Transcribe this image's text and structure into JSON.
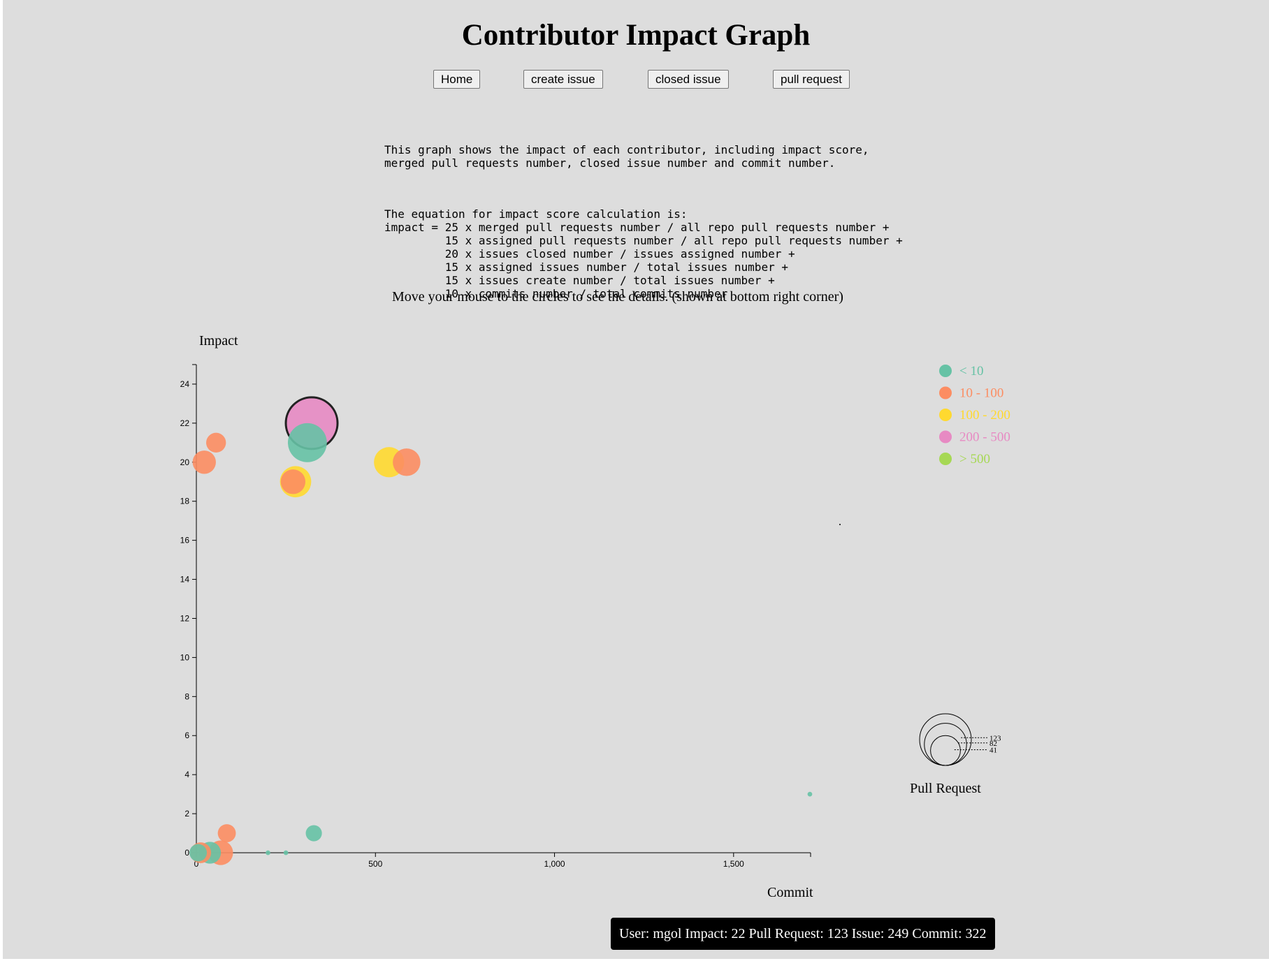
{
  "title": "Contributor Impact Graph",
  "nav": {
    "home": "Home",
    "create_issue": "create issue",
    "closed_issue": "closed issue",
    "pull_request": "pull request"
  },
  "description": {
    "intro": "This graph shows the impact of each contributor, including impact score,\nmerged pull requests number, closed issue number and commit number.",
    "equation": "The equation for impact score calculation is:\nimpact = 25 x merged pull requests number / all repo pull requests number +\n         15 x assigned pull requests number / all repo pull requests number +\n         20 x issues closed number / issues assigned number +\n         15 x assigned issues number / total issues number +\n         15 x issues create number / total issues number +\n         10 x commits number / total commits number"
  },
  "hint": "Move your mouse to the circles to see the details. (shown at bottom right corner)",
  "chart_data": {
    "type": "scatter",
    "xlabel": "Commit",
    "ylabel": "Impact",
    "xlim": [
      0,
      1715
    ],
    "ylim": [
      0,
      25
    ],
    "x_ticks": [
      0,
      500,
      1000,
      1500
    ],
    "x_tick_labels": [
      "0",
      "500",
      "1,000",
      "1,500"
    ],
    "y_ticks": [
      0,
      2,
      4,
      6,
      8,
      10,
      12,
      14,
      16,
      18,
      20,
      22,
      24
    ],
    "grid": false,
    "size_encoding": "Pull Request",
    "color_encoding": "Issue",
    "legend": [
      {
        "label": "< 10",
        "color": "#66c2a5"
      },
      {
        "label": "10 - 100",
        "color": "#fc8d62"
      },
      {
        "label": "100 - 200",
        "color": "#ffd92f"
      },
      {
        "label": "200 - 500",
        "color": "#e78ac3"
      },
      {
        "label": "> 500",
        "color": "#a6d854"
      }
    ],
    "size_legend": {
      "title": "Pull Request",
      "values": [
        123,
        82,
        41
      ]
    },
    "points": [
      {
        "commit": 322,
        "impact": 22,
        "pull_request": 123,
        "issue": 249,
        "color": "#e78ac3",
        "highlighted": true
      },
      {
        "commit": 310,
        "impact": 21,
        "pull_request": 70,
        "issue": 5,
        "color": "#66c2a5"
      },
      {
        "commit": 55,
        "impact": 21,
        "pull_request": 18,
        "issue": 40,
        "color": "#fc8d62"
      },
      {
        "commit": 22,
        "impact": 20,
        "pull_request": 25,
        "issue": 30,
        "color": "#fc8d62"
      },
      {
        "commit": 538,
        "impact": 20,
        "pull_request": 42,
        "issue": 150,
        "color": "#ffd92f"
      },
      {
        "commit": 587,
        "impact": 20,
        "pull_request": 35,
        "issue": 60,
        "color": "#fc8d62"
      },
      {
        "commit": 277,
        "impact": 19,
        "pull_request": 45,
        "issue": 130,
        "color": "#ffd92f"
      },
      {
        "commit": 270,
        "impact": 19,
        "pull_request": 28,
        "issue": 50,
        "color": "#fc8d62"
      },
      {
        "commit": 328,
        "impact": 1,
        "pull_request": 12,
        "issue": 3,
        "color": "#66c2a5"
      },
      {
        "commit": 85,
        "impact": 1,
        "pull_request": 15,
        "issue": 20,
        "color": "#fc8d62"
      },
      {
        "commit": 68,
        "impact": 0,
        "pull_request": 28,
        "issue": 30,
        "color": "#fc8d62"
      },
      {
        "commit": 38,
        "impact": 0,
        "pull_request": 22,
        "issue": 4,
        "color": "#66c2a5"
      },
      {
        "commit": 12,
        "impact": 0,
        "pull_request": 20,
        "issue": 25,
        "color": "#fc8d62"
      },
      {
        "commit": 5,
        "impact": 0,
        "pull_request": 14,
        "issue": 2,
        "color": "#66c2a5"
      },
      {
        "commit": 200,
        "impact": 0,
        "pull_request": 1,
        "issue": 1,
        "color": "#66c2a5"
      },
      {
        "commit": 250,
        "impact": 0,
        "pull_request": 1,
        "issue": 1,
        "color": "#66c2a5"
      },
      {
        "commit": 1713,
        "impact": 3,
        "pull_request": 1,
        "issue": 1,
        "color": "#66c2a5"
      }
    ]
  },
  "tooltip": {
    "text": "User: mgol Impact: 22 Pull Request: 123 Issue: 249 Commit: 322"
  }
}
